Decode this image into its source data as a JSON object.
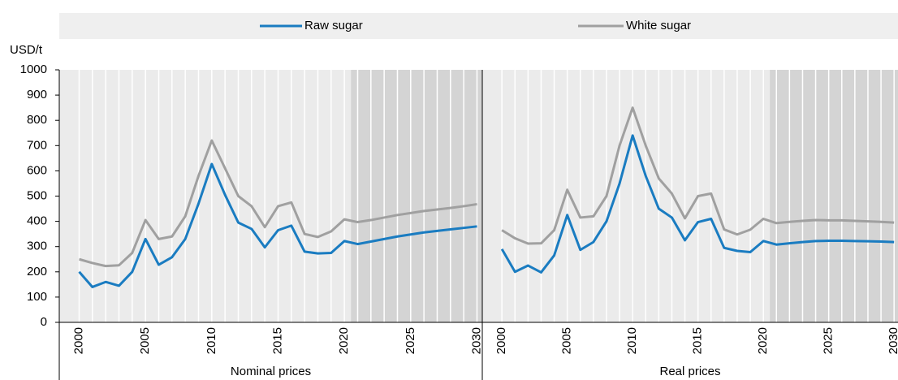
{
  "chart_data": [
    {
      "type": "line",
      "title": "Nominal prices",
      "ylabel": "USD/t",
      "x": [
        2000,
        2001,
        2002,
        2003,
        2004,
        2005,
        2006,
        2007,
        2008,
        2009,
        2010,
        2011,
        2012,
        2013,
        2014,
        2015,
        2016,
        2017,
        2018,
        2019,
        2020,
        2021,
        2022,
        2023,
        2024,
        2025,
        2026,
        2027,
        2028,
        2029,
        2030
      ],
      "series": [
        {
          "name": "Raw sugar",
          "color": "#1a7cc1",
          "values": [
            200,
            140,
            160,
            145,
            200,
            330,
            228,
            258,
            330,
            470,
            627,
            505,
            395,
            370,
            297,
            365,
            383,
            280,
            273,
            275,
            322,
            310,
            320,
            330,
            340,
            348,
            356,
            362,
            368,
            374,
            380
          ]
        },
        {
          "name": "White sugar",
          "color": "#a0a0a0",
          "values": [
            250,
            235,
            223,
            226,
            275,
            405,
            330,
            340,
            420,
            580,
            720,
            610,
            500,
            460,
            377,
            460,
            475,
            350,
            338,
            360,
            408,
            397,
            405,
            415,
            425,
            433,
            441,
            447,
            453,
            460,
            468
          ]
        }
      ],
      "xlim": [
        1998.5,
        2030.4
      ],
      "xticks": [
        2000,
        2005,
        2010,
        2015,
        2020,
        2025,
        2030
      ],
      "ylim": [
        0,
        1000
      ],
      "yticks": [
        0,
        100,
        200,
        300,
        400,
        500,
        600,
        700,
        800,
        900,
        1000
      ],
      "shaded_xrange": [
        2020.5,
        2030.4
      ]
    },
    {
      "type": "line",
      "title": "Real prices",
      "x": [
        2000,
        2001,
        2002,
        2003,
        2004,
        2005,
        2006,
        2007,
        2008,
        2009,
        2010,
        2011,
        2012,
        2013,
        2014,
        2015,
        2016,
        2017,
        2018,
        2019,
        2020,
        2021,
        2022,
        2023,
        2024,
        2025,
        2026,
        2027,
        2028,
        2029,
        2030
      ],
      "series": [
        {
          "color": "#1a7cc1",
          "values": [
            290,
            200,
            225,
            198,
            265,
            425,
            287,
            318,
            400,
            550,
            740,
            580,
            450,
            415,
            325,
            397,
            410,
            295,
            283,
            278,
            322,
            308,
            313,
            318,
            322,
            323,
            323,
            322,
            321,
            320,
            318
          ]
        },
        {
          "color": "#a0a0a0",
          "values": [
            365,
            333,
            312,
            313,
            365,
            525,
            415,
            420,
            500,
            700,
            850,
            700,
            570,
            510,
            412,
            500,
            510,
            368,
            348,
            367,
            410,
            393,
            398,
            402,
            405,
            404,
            404,
            402,
            400,
            398,
            395
          ]
        }
      ],
      "xlim": [
        1998.5,
        2030.3
      ],
      "xticks": [
        2000,
        2005,
        2010,
        2015,
        2020,
        2025,
        2030
      ],
      "ylim": [
        0,
        1000
      ],
      "shaded_xrange": [
        2020.5,
        2030.3
      ]
    }
  ]
}
